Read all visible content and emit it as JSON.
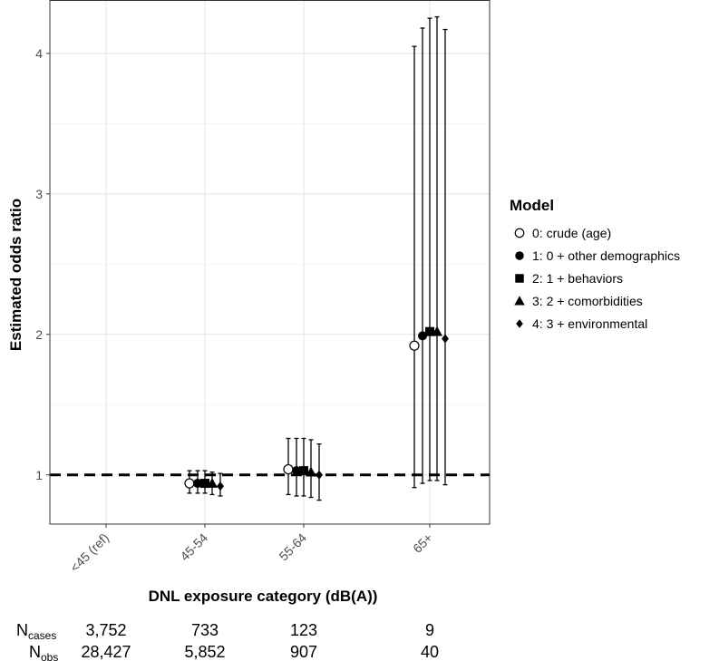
{
  "chart_data": {
    "type": "scatter",
    "subtype": "point-estimate with error bars",
    "xlabel": "DNL exposure category (dB(A))",
    "ylabel": "Estimated odds ratio",
    "categories": [
      "<45 (ref)",
      "45-54",
      "55-64",
      "65+"
    ],
    "y_ticks": [
      "1",
      "2",
      "3",
      "4"
    ],
    "ylim": [
      0.65,
      4.38
    ],
    "reference_line": 1,
    "grid": true,
    "legend_title": "Model",
    "legend_position": "right",
    "series": [
      {
        "name": "0: crude (age)",
        "marker": "open-circle",
        "points": [
          {
            "category": "45-54",
            "y": 0.94,
            "lo": 0.87,
            "hi": 1.03
          },
          {
            "category": "55-64",
            "y": 1.04,
            "lo": 0.86,
            "hi": 1.26
          },
          {
            "category": "65+",
            "y": 1.92,
            "lo": 0.91,
            "hi": 4.05
          }
        ]
      },
      {
        "name": "1: 0 + other demographics",
        "marker": "filled-circle",
        "points": [
          {
            "category": "45-54",
            "y": 0.94,
            "lo": 0.87,
            "hi": 1.03
          },
          {
            "category": "55-64",
            "y": 1.03,
            "lo": 0.85,
            "hi": 1.26
          },
          {
            "category": "65+",
            "y": 1.99,
            "lo": 0.94,
            "hi": 4.18
          }
        ]
      },
      {
        "name": "2: 1 + behaviors",
        "marker": "square",
        "points": [
          {
            "category": "45-54",
            "y": 0.94,
            "lo": 0.87,
            "hi": 1.03
          },
          {
            "category": "55-64",
            "y": 1.03,
            "lo": 0.85,
            "hi": 1.26
          },
          {
            "category": "65+",
            "y": 2.02,
            "lo": 0.96,
            "hi": 4.25
          }
        ]
      },
      {
        "name": "3: 2 + comorbidities",
        "marker": "triangle",
        "points": [
          {
            "category": "45-54",
            "y": 0.94,
            "lo": 0.86,
            "hi": 1.02
          },
          {
            "category": "55-64",
            "y": 1.02,
            "lo": 0.84,
            "hi": 1.25
          },
          {
            "category": "65+",
            "y": 2.02,
            "lo": 0.96,
            "hi": 4.26
          }
        ]
      },
      {
        "name": "4: 3 + environmental",
        "marker": "diamond",
        "points": [
          {
            "category": "45-54",
            "y": 0.92,
            "lo": 0.85,
            "hi": 1.01
          },
          {
            "category": "55-64",
            "y": 1.0,
            "lo": 0.82,
            "hi": 1.22
          },
          {
            "category": "65+",
            "y": 1.97,
            "lo": 0.93,
            "hi": 4.17
          }
        ]
      }
    ]
  },
  "counts": {
    "cases_label": "N",
    "cases_sub": "cases",
    "obs_label": "N",
    "obs_sub": "obs",
    "cases": [
      "3,752",
      "733",
      "123",
      "9"
    ],
    "obs": [
      "28,427",
      "5,852",
      "907",
      "40"
    ]
  }
}
